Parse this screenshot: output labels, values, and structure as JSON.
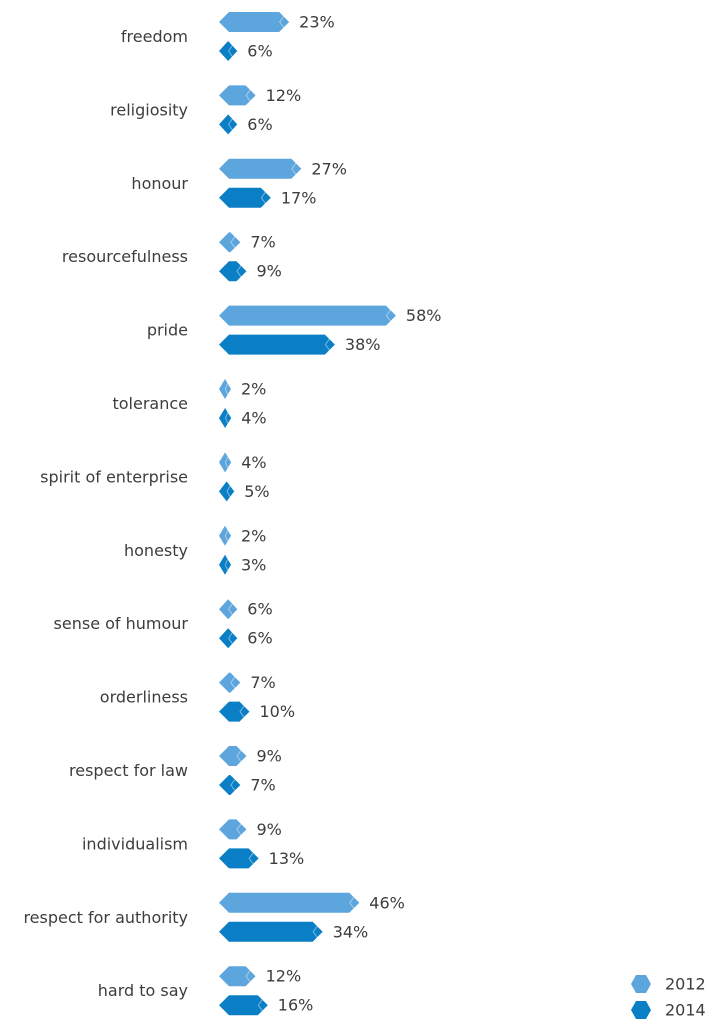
{
  "chart_data": {
    "type": "bar",
    "orientation": "horizontal",
    "value_unit": "%",
    "categories": [
      "freedom",
      "religiosity",
      "honour",
      "resourcefulness",
      "pride",
      "tolerance",
      "spirit of enterprise",
      "honesty",
      "sense of humour",
      "orderliness",
      "respect for law",
      "individualism",
      "respect for authority",
      "hard to say"
    ],
    "series": [
      {
        "name": "2012",
        "color": "#5ca5dd",
        "values": [
          23,
          12,
          27,
          7,
          58,
          2,
          4,
          2,
          6,
          7,
          9,
          9,
          46,
          12
        ]
      },
      {
        "name": "2014",
        "color": "#0a7fc6",
        "values": [
          6,
          6,
          17,
          9,
          38,
          4,
          5,
          3,
          6,
          10,
          7,
          13,
          34,
          16
        ]
      }
    ],
    "xlim": [
      0,
      58
    ],
    "grid": false,
    "legend": {
      "position": "bottom-right",
      "entries": [
        "2012",
        "2014"
      ]
    },
    "bar_shape": "hexagon-capped",
    "text_color": "#3d3d3d"
  }
}
